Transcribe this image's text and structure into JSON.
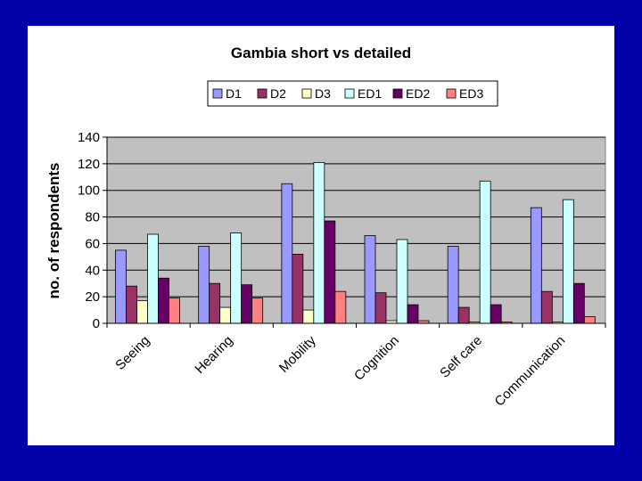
{
  "chart_data": {
    "type": "bar",
    "title": "Gambia short vs detailed",
    "xlabel": "",
    "ylabel": "no. of respondents",
    "ylim": [
      0,
      140
    ],
    "yticks": [
      "0",
      "20",
      "40",
      "60",
      "80",
      "100",
      "120",
      "140"
    ],
    "grid": "horizontal",
    "legend_position": "top",
    "categories": [
      "Seeing",
      "Hearing",
      "Mobility",
      "Cognition",
      "Self care",
      "Communication"
    ],
    "series": [
      {
        "name": "D1",
        "color": "#9999ff",
        "values": [
          55,
          58,
          105,
          66,
          58,
          87
        ]
      },
      {
        "name": "D2",
        "color": "#993366",
        "values": [
          28,
          30,
          52,
          23,
          12,
          24
        ]
      },
      {
        "name": "D3",
        "color": "#ffffcc",
        "values": [
          17,
          12,
          10,
          2,
          1,
          1
        ]
      },
      {
        "name": "ED1",
        "color": "#ccffff",
        "values": [
          67,
          68,
          121,
          63,
          107,
          93
        ]
      },
      {
        "name": "ED2",
        "color": "#660066",
        "values": [
          34,
          29,
          77,
          14,
          14,
          30
        ]
      },
      {
        "name": "ED3",
        "color": "#ff8080",
        "values": [
          19,
          19,
          24,
          2,
          1,
          5
        ]
      }
    ]
  }
}
